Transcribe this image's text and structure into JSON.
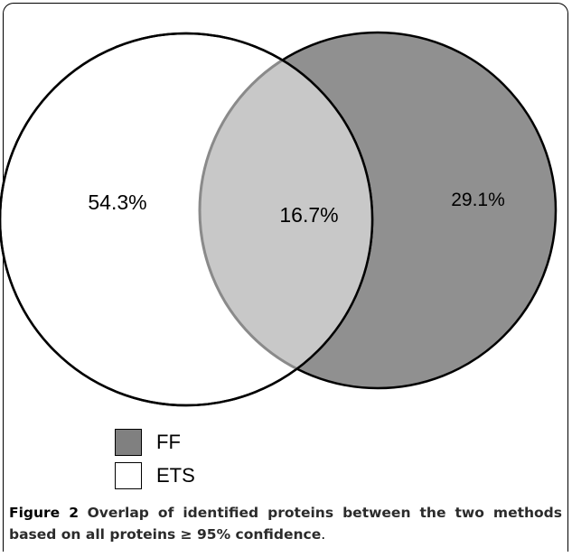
{
  "diagram": {
    "type": "venn",
    "sets": [
      {
        "name": "ETS",
        "fill": "#ffffff"
      },
      {
        "name": "FF",
        "fill": "#909090"
      }
    ],
    "overlap_fill": "#c8c8c8",
    "regions": {
      "ets_only": "54.3%",
      "overlap": "16.7%",
      "ff_only": "29.1%"
    }
  },
  "legend": {
    "items": [
      {
        "label": "FF",
        "color": "#808080"
      },
      {
        "label": "ETS",
        "color": "#ffffff"
      }
    ]
  },
  "caption": {
    "label": "Figure 2",
    "text": "Overlap of identified proteins between the two methods based on all proteins ≥ 95% confidence",
    "end": "."
  }
}
